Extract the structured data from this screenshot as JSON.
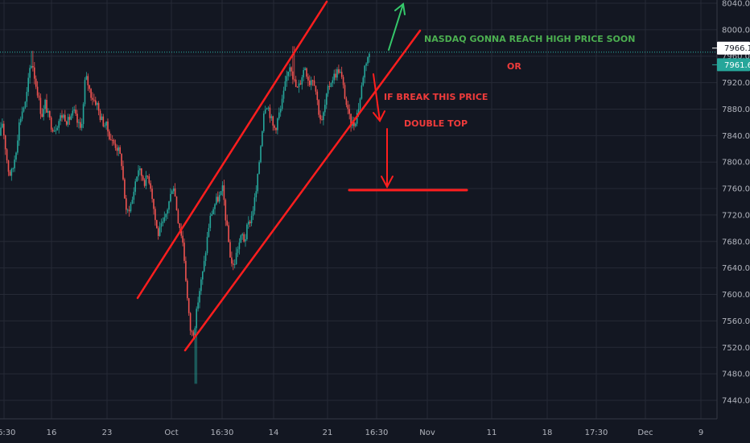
{
  "chart_data": {
    "type": "candlestick",
    "y_ticks": [
      7440,
      7480,
      7520,
      7560,
      7600,
      7640,
      7680,
      7720,
      7760,
      7800,
      7840,
      7880,
      7920,
      7960,
      8000,
      8040
    ],
    "y_tick_labels": [
      "7440.0",
      "7480.0",
      "7520.0",
      "7560.0",
      "7600.0",
      "7640.0",
      "7680.0",
      "7720.0",
      "7760.0",
      "7800.0",
      "7840.0",
      "7880.0",
      "7920.0",
      "7960.0",
      "8000.0",
      "8040.0"
    ],
    "ylim": [
      7425,
      8045
    ],
    "x_tick_labels": [
      "16:30",
      "16",
      "23",
      "Oct",
      "16:30",
      "14",
      "21",
      "16:30",
      "Nov",
      "11",
      "18",
      "17:30",
      "Dec",
      "9"
    ],
    "price_line": 7966.1,
    "price_badges": [
      {
        "label": "7966.1",
        "value": 7966.1,
        "bg": "#ffffff",
        "fg": "#131722"
      },
      {
        "label": "7961.6",
        "value": 7961.6,
        "bg": "#26a69a",
        "fg": "#ffffff"
      }
    ],
    "candle_path": [
      [
        0,
        7840
      ],
      [
        3,
        7860
      ],
      [
        7,
        7820
      ],
      [
        10,
        7790
      ],
      [
        13,
        7780
      ],
      [
        16,
        7790
      ],
      [
        20,
        7820
      ],
      [
        24,
        7860
      ],
      [
        28,
        7880
      ],
      [
        32,
        7890
      ],
      [
        35,
        7920
      ],
      [
        38,
        7950
      ],
      [
        41,
        7945
      ],
      [
        44,
        7920
      ],
      [
        47,
        7905
      ],
      [
        50,
        7880
      ],
      [
        53,
        7870
      ],
      [
        56,
        7890
      ],
      [
        60,
        7870
      ],
      [
        64,
        7855
      ],
      [
        68,
        7850
      ],
      [
        72,
        7860
      ],
      [
        76,
        7870
      ],
      [
        80,
        7870
      ],
      [
        84,
        7860
      ],
      [
        88,
        7870
      ],
      [
        92,
        7875
      ],
      [
        96,
        7860
      ],
      [
        100,
        7850
      ],
      [
        103,
        7875
      ],
      [
        106,
        7930
      ],
      [
        109,
        7920
      ],
      [
        112,
        7905
      ],
      [
        116,
        7895
      ],
      [
        120,
        7890
      ],
      [
        124,
        7870
      ],
      [
        128,
        7860
      ],
      [
        132,
        7855
      ],
      [
        136,
        7840
      ],
      [
        140,
        7830
      ],
      [
        144,
        7825
      ],
      [
        148,
        7815
      ],
      [
        151,
        7800
      ],
      [
        154,
        7760
      ],
      [
        157,
        7720
      ],
      [
        160,
        7730
      ],
      [
        164,
        7740
      ],
      [
        168,
        7770
      ],
      [
        172,
        7790
      ],
      [
        176,
        7780
      ],
      [
        180,
        7770
      ],
      [
        184,
        7780
      ],
      [
        188,
        7760
      ],
      [
        192,
        7720
      ],
      [
        196,
        7690
      ],
      [
        200,
        7700
      ],
      [
        204,
        7710
      ],
      [
        208,
        7730
      ],
      [
        212,
        7750
      ],
      [
        215,
        7770
      ],
      [
        218,
        7745
      ],
      [
        221,
        7715
      ],
      [
        224,
        7700
      ],
      [
        227,
        7680
      ],
      [
        230,
        7640
      ],
      [
        233,
        7590
      ],
      [
        236,
        7550
      ],
      [
        238,
        7540
      ],
      [
        241,
        7545
      ],
      [
        244,
        7570
      ],
      [
        247,
        7600
      ],
      [
        250,
        7620
      ],
      [
        253,
        7640
      ],
      [
        256,
        7670
      ],
      [
        259,
        7700
      ],
      [
        262,
        7720
      ],
      [
        265,
        7730
      ],
      [
        268,
        7740
      ],
      [
        271,
        7745
      ],
      [
        274,
        7750
      ],
      [
        277,
        7760
      ],
      [
        280,
        7720
      ],
      [
        283,
        7690
      ],
      [
        286,
        7660
      ],
      [
        289,
        7640
      ],
      [
        292,
        7650
      ],
      [
        295,
        7670
      ],
      [
        298,
        7680
      ],
      [
        301,
        7690
      ],
      [
        304,
        7680
      ],
      [
        307,
        7700
      ],
      [
        310,
        7710
      ],
      [
        313,
        7720
      ],
      [
        316,
        7740
      ],
      [
        319,
        7760
      ],
      [
        322,
        7800
      ],
      [
        325,
        7840
      ],
      [
        328,
        7880
      ],
      [
        331,
        7890
      ],
      [
        334,
        7880
      ],
      [
        337,
        7865
      ],
      [
        340,
        7850
      ],
      [
        343,
        7855
      ],
      [
        346,
        7870
      ],
      [
        349,
        7880
      ],
      [
        352,
        7900
      ],
      [
        355,
        7920
      ],
      [
        358,
        7940
      ],
      [
        361,
        7950
      ],
      [
        364,
        7930
      ],
      [
        367,
        7915
      ],
      [
        370,
        7910
      ],
      [
        373,
        7920
      ],
      [
        376,
        7935
      ],
      [
        379,
        7945
      ],
      [
        382,
        7930
      ],
      [
        385,
        7920
      ],
      [
        388,
        7930
      ],
      [
        391,
        7920
      ],
      [
        394,
        7895
      ],
      [
        397,
        7870
      ],
      [
        400,
        7860
      ],
      [
        403,
        7880
      ],
      [
        406,
        7900
      ],
      [
        409,
        7915
      ],
      [
        412,
        7925
      ],
      [
        415,
        7930
      ],
      [
        418,
        7935
      ],
      [
        421,
        7940
      ],
      [
        424,
        7930
      ],
      [
        427,
        7910
      ],
      [
        430,
        7890
      ],
      [
        433,
        7870
      ],
      [
        436,
        7860
      ],
      [
        439,
        7855
      ],
      [
        442,
        7865
      ],
      [
        445,
        7880
      ],
      [
        448,
        7900
      ],
      [
        451,
        7930
      ],
      [
        454,
        7950
      ],
      [
        457,
        7960
      ],
      [
        460,
        7962
      ]
    ],
    "annotations": [
      {
        "text": "NASDAQ GONNA REACH HIGH PRICE SOON",
        "color": "#4caf50"
      },
      {
        "text": "OR",
        "color": "#ef3b3b"
      },
      {
        "text": "IF BREAK THIS PRICE",
        "color": "#ef3b3b"
      },
      {
        "text": "DOUBLE TOP",
        "color": "#ef3b3b"
      }
    ],
    "colors": {
      "background": "#131722",
      "grid": "#262a36",
      "up": "#26a69a",
      "down": "#ef5350",
      "drawing": "#ff1e1e",
      "green_arrow": "#35c96b",
      "price_line": "#2bb3a6",
      "axis_text": "#b2b5be"
    }
  }
}
